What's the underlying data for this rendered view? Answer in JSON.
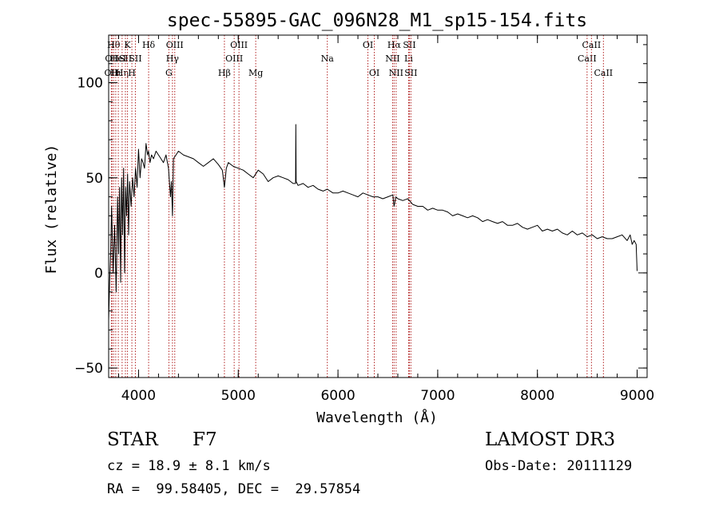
{
  "chart_data": {
    "type": "line",
    "title": "spec-55895-GAC_096N28_M1_sp15-154.fits",
    "xlabel": "Wavelength (Å)",
    "ylabel": "Flux (relative)",
    "xlim": [
      3700,
      9100
    ],
    "ylim": [
      -55,
      125
    ],
    "xticks": [
      4000,
      5000,
      6000,
      7000,
      8000,
      9000
    ],
    "yticks": [
      -50,
      0,
      50,
      100
    ],
    "grid": false,
    "line_color": "#000000",
    "marker_color": "#b22222",
    "series": [
      {
        "x": [
          3700,
          3710,
          3720,
          3730,
          3745,
          3760,
          3775,
          3790,
          3800,
          3810,
          3820,
          3830,
          3840,
          3850,
          3860,
          3870,
          3880,
          3890,
          3900,
          3910,
          3925,
          3940,
          3955,
          3970,
          3985,
          4000,
          4015,
          4030,
          4045,
          4060,
          4075,
          4090,
          4100,
          4115,
          4130,
          4150,
          4175,
          4200,
          4225,
          4250,
          4275,
          4300,
          4320,
          4330,
          4340,
          4350,
          4375,
          4400,
          4450,
          4500,
          4550,
          4600,
          4650,
          4700,
          4750,
          4800,
          4840,
          4861,
          4880,
          4900,
          4950,
          5000,
          5050,
          5100,
          5150,
          5200,
          5250,
          5300,
          5350,
          5400,
          5450,
          5500,
          5550,
          5575,
          5577,
          5580,
          5600,
          5650,
          5700,
          5750,
          5800,
          5850,
          5893,
          5950,
          6000,
          6050,
          6100,
          6150,
          6200,
          6250,
          6300,
          6350,
          6400,
          6450,
          6500,
          6550,
          6563,
          6580,
          6600,
          6650,
          6700,
          6750,
          6800,
          6850,
          6900,
          6950,
          7000,
          7050,
          7100,
          7150,
          7200,
          7250,
          7300,
          7350,
          7400,
          7450,
          7500,
          7550,
          7600,
          7650,
          7700,
          7750,
          7800,
          7850,
          7900,
          7950,
          8000,
          8050,
          8100,
          8150,
          8200,
          8250,
          8300,
          8350,
          8400,
          8450,
          8500,
          8550,
          8600,
          8650,
          8700,
          8750,
          8800,
          8850,
          8900,
          8930,
          8950,
          8970,
          8990,
          9000
        ],
        "y": [
          -25,
          -5,
          10,
          35,
          0,
          25,
          -10,
          40,
          10,
          45,
          -5,
          50,
          20,
          55,
          0,
          45,
          30,
          52,
          20,
          48,
          35,
          50,
          40,
          55,
          45,
          65,
          50,
          60,
          58,
          55,
          68,
          62,
          64,
          58,
          62,
          60,
          64,
          62,
          60,
          58,
          62,
          55,
          40,
          48,
          30,
          60,
          62,
          64,
          62,
          61,
          60,
          58,
          56,
          58,
          60,
          57,
          54,
          45,
          55,
          58,
          56,
          55,
          54,
          52,
          50,
          54,
          52,
          48,
          50,
          51,
          50,
          49,
          47,
          47,
          78,
          48,
          46,
          47,
          45,
          46,
          44,
          43,
          44,
          42,
          42,
          43,
          42,
          41,
          40,
          42,
          41,
          40,
          40,
          39,
          40,
          41,
          35,
          40,
          39,
          38,
          39,
          36,
          35,
          35,
          33,
          34,
          33,
          33,
          32,
          30,
          31,
          30,
          29,
          30,
          29,
          27,
          28,
          27,
          26,
          27,
          25,
          25,
          26,
          24,
          23,
          24,
          25,
          22,
          23,
          22,
          23,
          21,
          20,
          22,
          20,
          21,
          19,
          20,
          18,
          19,
          18,
          18,
          19,
          20,
          17,
          20,
          15,
          17,
          15,
          1
        ]
      }
    ],
    "line_markers": [
      {
        "x": 3727,
        "row": 2,
        "label": "OII"
      },
      {
        "x": 3734,
        "row": 1,
        "label": "OII"
      },
      {
        "x": 3750,
        "row": 0,
        "label": "Hθ"
      },
      {
        "x": 3771,
        "row": 2,
        "label": "Hι"
      },
      {
        "x": 3797,
        "row": 1,
        "label": "HeI"
      },
      {
        "x": 3835,
        "row": 2,
        "label": "Hη"
      },
      {
        "x": 3868,
        "row": 1,
        "label": "SII"
      },
      {
        "x": 3889,
        "row": 0,
        "label": "K"
      },
      {
        "x": 3933,
        "row": 2,
        "label": "H"
      },
      {
        "x": 3968,
        "row": 1,
        "label": "SII"
      },
      {
        "x": 4101,
        "row": 0,
        "label": "Hδ"
      },
      {
        "x": 4304,
        "row": 2,
        "label": "G"
      },
      {
        "x": 4340,
        "row": 1,
        "label": "Hγ"
      },
      {
        "x": 4363,
        "row": 0,
        "label": "OIII"
      },
      {
        "x": 4861,
        "row": 2,
        "label": "Hβ"
      },
      {
        "x": 4959,
        "row": 1,
        "label": "OIII"
      },
      {
        "x": 5007,
        "row": 0,
        "label": "OIII"
      },
      {
        "x": 5175,
        "row": 2,
        "label": "Mg"
      },
      {
        "x": 5893,
        "row": 1,
        "label": "Na"
      },
      {
        "x": 6300,
        "row": 0,
        "label": "OI"
      },
      {
        "x": 6364,
        "row": 2,
        "label": "OI"
      },
      {
        "x": 6548,
        "row": 1,
        "label": "NII"
      },
      {
        "x": 6563,
        "row": 0,
        "label": "Hα"
      },
      {
        "x": 6583,
        "row": 2,
        "label": "NII"
      },
      {
        "x": 6708,
        "row": 1,
        "label": "Li"
      },
      {
        "x": 6716,
        "row": 0,
        "label": "SII"
      },
      {
        "x": 6731,
        "row": 2,
        "label": "SII"
      },
      {
        "x": 8498,
        "row": 1,
        "label": "CaII"
      },
      {
        "x": 8542,
        "row": 0,
        "label": "CaII"
      },
      {
        "x": 8662,
        "row": 2,
        "label": "CaII"
      }
    ]
  },
  "info": {
    "class": "STAR",
    "subclass": "F7",
    "survey": "LAMOST DR3",
    "velocity": "cz = 18.9 ± 8.1 km/s",
    "obs_date": "Obs-Date: 20111129",
    "coords": "RA =  99.58405, DEC =  29.57854"
  }
}
